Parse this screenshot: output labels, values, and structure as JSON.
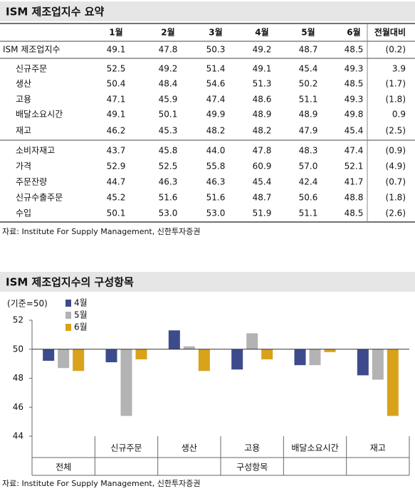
{
  "summary": {
    "title": "ISM 제조업지수 요약",
    "table": {
      "header": [
        "",
        "1월",
        "2월",
        "3월",
        "4월",
        "5월",
        "6월",
        "전월대비"
      ],
      "rows": [
        [
          "ISM 제조업지수",
          "49.1",
          "47.8",
          "50.3",
          "49.2",
          "48.7",
          "48.5",
          "(0.2)"
        ],
        [
          "신규주문",
          "52.5",
          "49.2",
          "51.4",
          "49.1",
          "45.4",
          "49.3",
          "3.9"
        ],
        [
          "생산",
          "50.4",
          "48.4",
          "54.6",
          "51.3",
          "50.2",
          "48.5",
          "(1.7)"
        ],
        [
          "고용",
          "47.1",
          "45.9",
          "47.4",
          "48.6",
          "51.1",
          "49.3",
          "(1.8)"
        ],
        [
          "배달소요시간",
          "49.1",
          "50.1",
          "49.9",
          "48.9",
          "48.9",
          "49.8",
          "0.9"
        ],
        [
          "재고",
          "46.2",
          "45.3",
          "48.2",
          "48.2",
          "47.9",
          "45.4",
          "(2.5)"
        ],
        [
          "소비자재고",
          "43.7",
          "45.8",
          "44.0",
          "47.8",
          "48.3",
          "47.4",
          "(0.9)"
        ],
        [
          "가격",
          "52.9",
          "52.5",
          "55.8",
          "60.9",
          "57.0",
          "52.1",
          "(4.9)"
        ],
        [
          "주문잔량",
          "44.7",
          "46.3",
          "46.3",
          "45.4",
          "42.4",
          "41.7",
          "(0.7)"
        ],
        [
          "신규수출주문",
          "45.2",
          "51.6",
          "51.6",
          "48.7",
          "50.6",
          "48.8",
          "(1.8)"
        ],
        [
          "수입",
          "50.1",
          "53.0",
          "53.0",
          "51.9",
          "51.1",
          "48.5",
          "(2.6)"
        ]
      ]
    },
    "source": "자료: Institute For Supply Management, 신한투자증권"
  },
  "chart_data": {
    "type": "bar",
    "title": "ISM 제조업지수의 구성항목",
    "note": "(기준=50)",
    "categories": [
      "전체",
      "신규주문",
      "생산",
      "고용",
      "배달소요시간",
      "재고"
    ],
    "group_label": "구성항목",
    "series": [
      {
        "name": "4월",
        "color": "#3d4b8c",
        "values": [
          49.2,
          49.1,
          51.3,
          48.6,
          48.9,
          48.2
        ]
      },
      {
        "name": "5월",
        "color": "#b3b3b3",
        "values": [
          48.7,
          45.4,
          50.2,
          51.1,
          48.9,
          47.9
        ]
      },
      {
        "name": "6월",
        "color": "#d9a21b",
        "values": [
          48.5,
          49.3,
          48.5,
          49.3,
          49.8,
          45.4
        ]
      }
    ],
    "ylim": [
      44,
      52
    ],
    "yticks": [
      44,
      46,
      48,
      50,
      52
    ],
    "baseline": 50,
    "source": "자료: Institute For Supply Management, 신한투자증권"
  }
}
